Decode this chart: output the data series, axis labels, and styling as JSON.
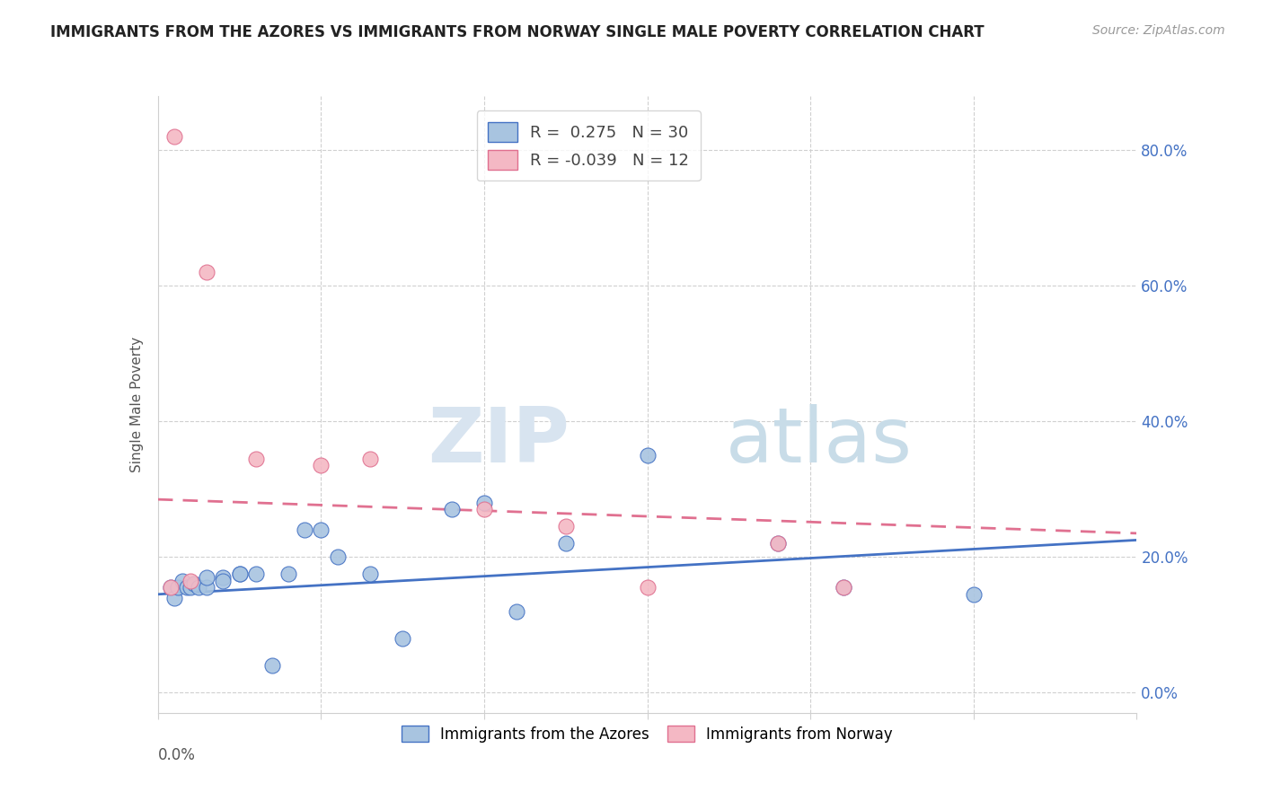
{
  "title": "IMMIGRANTS FROM THE AZORES VS IMMIGRANTS FROM NORWAY SINGLE MALE POVERTY CORRELATION CHART",
  "source": "Source: ZipAtlas.com",
  "ylabel": "Single Male Poverty",
  "ytick_vals": [
    0.0,
    0.2,
    0.4,
    0.6,
    0.8
  ],
  "xlim": [
    0.0,
    0.06
  ],
  "ylim": [
    -0.03,
    0.88
  ],
  "legend1_label": "R =  0.275   N = 30",
  "legend2_label": "R = -0.039   N = 12",
  "legend_xlabel": "Immigrants from the Azores",
  "legend_ylabel": "Immigrants from Norway",
  "azores_color": "#a8c4e0",
  "norway_color": "#f4b8c4",
  "azores_line_color": "#4472c4",
  "norway_line_color": "#e07090",
  "watermark_zip": "ZIP",
  "watermark_atlas": "atlas",
  "azores_x": [
    0.0008,
    0.001,
    0.0012,
    0.0015,
    0.0018,
    0.002,
    0.0022,
    0.0025,
    0.003,
    0.003,
    0.004,
    0.004,
    0.005,
    0.005,
    0.006,
    0.007,
    0.008,
    0.009,
    0.01,
    0.011,
    0.013,
    0.015,
    0.018,
    0.02,
    0.022,
    0.025,
    0.03,
    0.038,
    0.042,
    0.05
  ],
  "azores_y": [
    0.155,
    0.14,
    0.155,
    0.165,
    0.155,
    0.155,
    0.16,
    0.155,
    0.155,
    0.17,
    0.17,
    0.165,
    0.175,
    0.175,
    0.175,
    0.04,
    0.175,
    0.24,
    0.24,
    0.2,
    0.175,
    0.08,
    0.27,
    0.28,
    0.12,
    0.22,
    0.35,
    0.22,
    0.155,
    0.145
  ],
  "norway_x": [
    0.0008,
    0.001,
    0.002,
    0.003,
    0.006,
    0.01,
    0.013,
    0.02,
    0.025,
    0.03,
    0.038,
    0.042
  ],
  "norway_y": [
    0.155,
    0.82,
    0.165,
    0.62,
    0.345,
    0.335,
    0.345,
    0.27,
    0.245,
    0.155,
    0.22,
    0.155
  ]
}
